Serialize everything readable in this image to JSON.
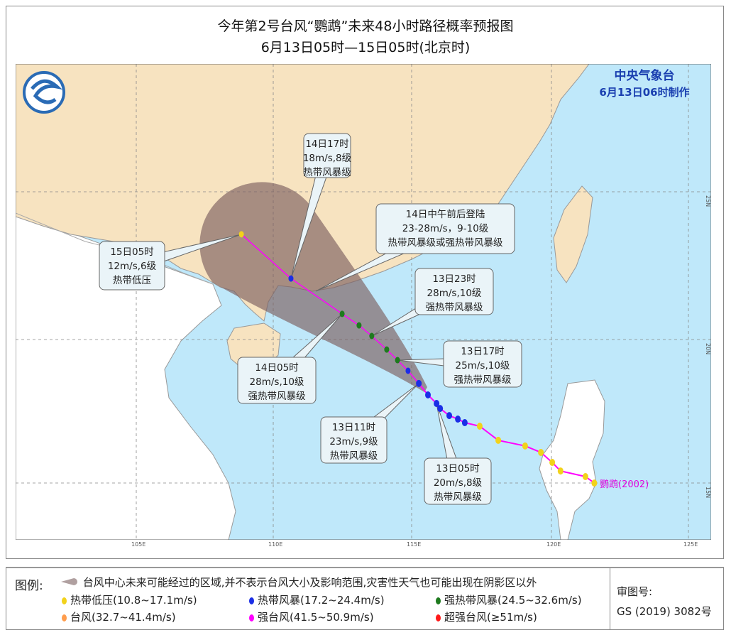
{
  "title": {
    "line1": "今年第2号台风“鹦鹉”未来48小时路径概率预报图",
    "line2": "6月13日05时—15日05时(北京时)"
  },
  "agency": {
    "name": "中央气象台",
    "issued": "6月13日06时制作"
  },
  "axes": {
    "lon_labels": [
      "105E",
      "110E",
      "115E",
      "120E",
      "125E"
    ],
    "lat_labels": [
      "25N",
      "20N",
      "15N"
    ]
  },
  "typhoon_label": "鹦鹉(2002)",
  "colors": {
    "sea": "#bfe8fa",
    "china_land": "#f7e3c0",
    "other_land": "#ffffff",
    "track": "#ff00ff",
    "cone": "#7d5f5f"
  },
  "track": {
    "past": [
      [
        121.6,
        15.13
      ],
      [
        121.28,
        15.35
      ],
      [
        120.38,
        15.54
      ],
      [
        120.08,
        15.83
      ],
      [
        119.67,
        16.17
      ],
      [
        119.1,
        16.39
      ],
      [
        118.13,
        16.58
      ],
      [
        117.46,
        17.06
      ],
      [
        116.92,
        17.18
      ],
      [
        116.67,
        17.3
      ],
      [
        116.36,
        17.42
      ],
      [
        116.03,
        17.66
      ],
      [
        115.9,
        17.83
      ],
      [
        115.59,
        18.12
      ],
      [
        115.26,
        18.51
      ]
    ],
    "past_levels": [
      "yellow",
      "yellow",
      "yellow",
      "yellow",
      "yellow",
      "yellow",
      "yellow",
      "yellow",
      "blue",
      "blue",
      "blue",
      "blue",
      "blue",
      "blue",
      "blue"
    ],
    "forecast": [
      [
        114.87,
        18.94,
        "blue"
      ],
      [
        114.49,
        19.3,
        "green"
      ],
      [
        114.1,
        19.66,
        "green"
      ],
      [
        113.56,
        20.12,
        "green"
      ],
      [
        113.1,
        20.48,
        "green"
      ],
      [
        112.49,
        20.87,
        "green"
      ],
      [
        110.64,
        22.07,
        "blue"
      ],
      [
        108.85,
        23.57,
        "yellow"
      ]
    ]
  },
  "callouts": [
    {
      "l1": "14日17时",
      "l2": "18m/s,8级",
      "l3": "热带风暴级"
    },
    {
      "l1": "14日中午前后登陆",
      "l2": "23-28m/s，9-10级",
      "l3": "热带风暴级或强热带风暴级"
    },
    {
      "l1": "15日05时",
      "l2": "12m/s,6级",
      "l3": "热带低压"
    },
    {
      "l1": "13日23时",
      "l2": "28m/s,10级",
      "l3": "强热带风暴级"
    },
    {
      "l1": "13日17时",
      "l2": "25m/s,10级",
      "l3": "强热带风暴级"
    },
    {
      "l1": "14日05时",
      "l2": "28m/s,10级",
      "l3": "强热带风暴级"
    },
    {
      "l1": "13日11时",
      "l2": "23m/s,9级",
      "l3": "热带风暴级"
    },
    {
      "l1": "13日05时",
      "l2": "20m/s,8级",
      "l3": "热带风暴级"
    }
  ],
  "legend": {
    "title": "图例:",
    "cone": "台风中心未来可能经过的区域,并不表示台风大小及影响范围,灾害性天气也可能出现在阴影区以外",
    "items": [
      {
        "label": "热带低压(10.8~17.1m/s)",
        "color": "#f2d21b"
      },
      {
        "label": "热带风暴(17.2~24.4m/s)",
        "color": "#1b2ee6"
      },
      {
        "label": "强热带风暴(24.5~32.6m/s)",
        "color": "#1e7a1e"
      },
      {
        "label": "台风(32.7~41.4m/s)",
        "color": "#ff9d4d"
      },
      {
        "label": "强台风(41.5~50.9m/s)",
        "color": "#ff00ff"
      },
      {
        "label": "超强台风(≥51m/s)",
        "color": "#ff1a1a"
      }
    ],
    "approval_label": "审图号:",
    "approval_no": "GS (2019) 3082号"
  }
}
